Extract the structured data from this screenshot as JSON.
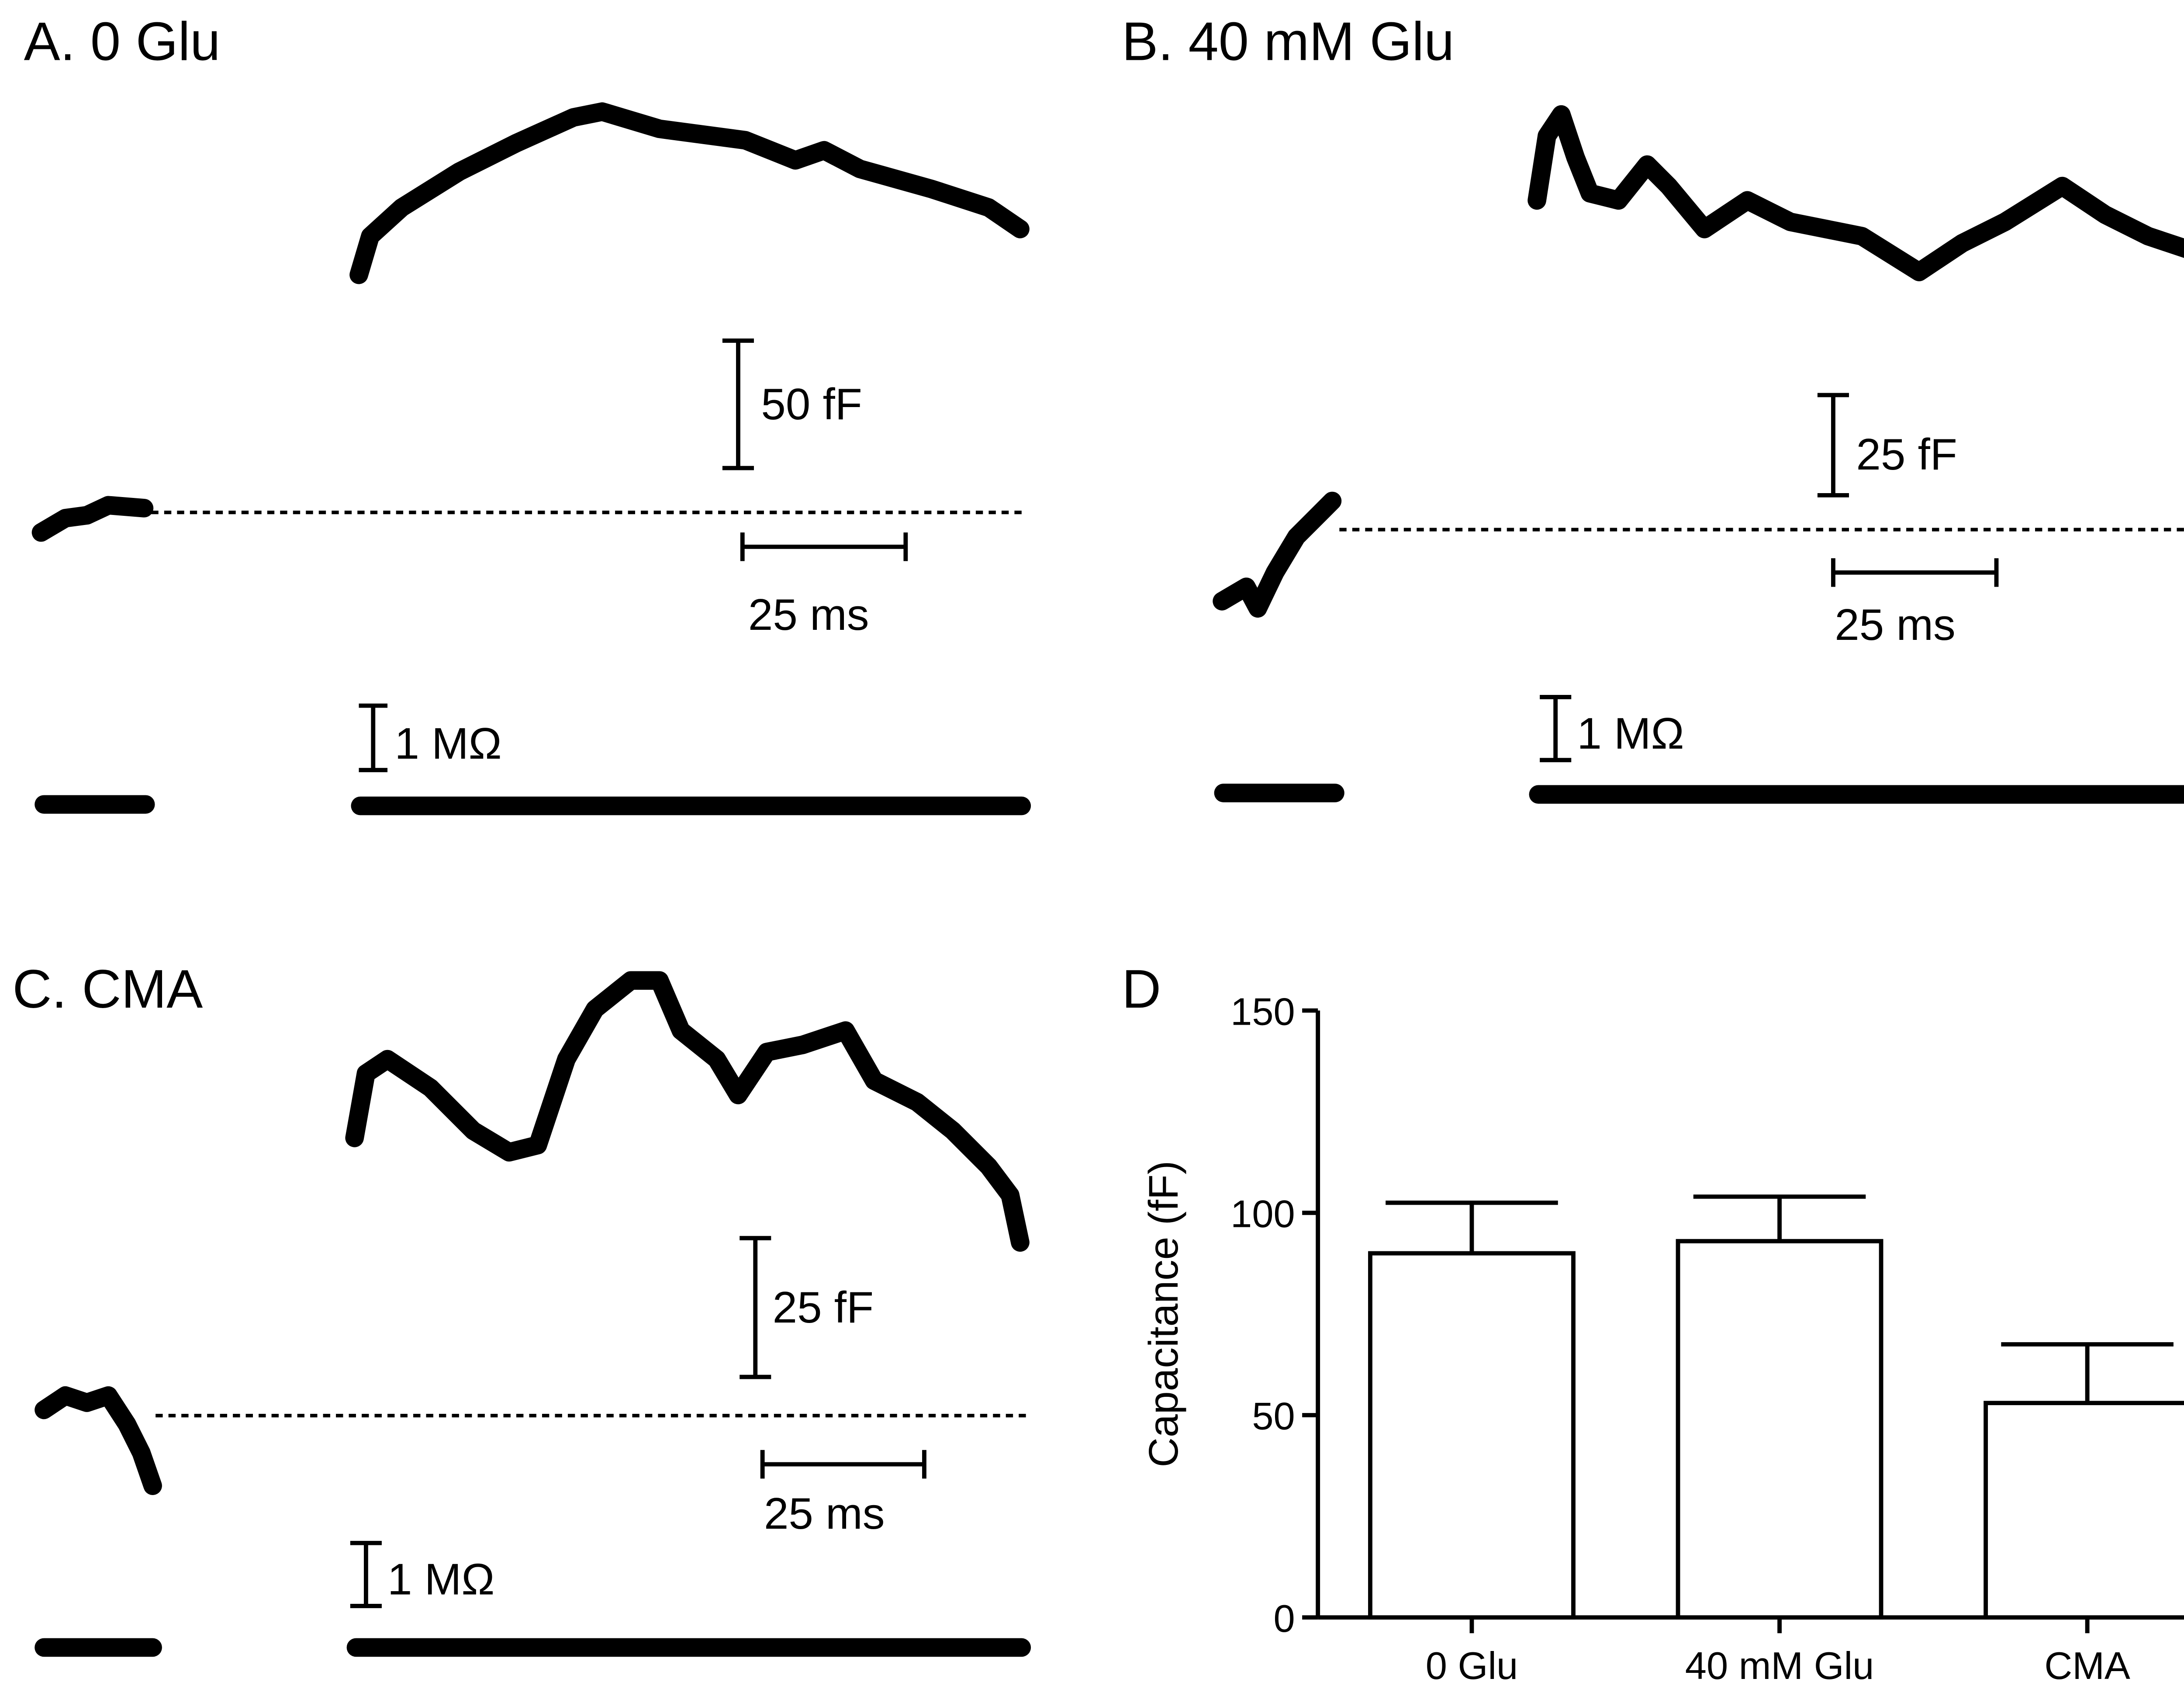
{
  "panels": [
    {
      "title": "A. 0 Glu",
      "cap_scale": "50 fF",
      "time_scale": "25 ms",
      "res_scale": "1 MΩ"
    },
    {
      "title": "B.  40 mM Glu",
      "cap_scale": "25 fF",
      "time_scale": "25 ms",
      "res_scale": "1 MΩ"
    },
    {
      "title": "C. CMA",
      "cap_scale": "25 fF",
      "time_scale": "25 ms",
      "res_scale": "1 MΩ"
    }
  ],
  "chart_data": {
    "type": "bar",
    "panel_label": "D",
    "y_label": "Capacitance (fF)",
    "categories": [
      "0 Glu",
      "40 mM Glu",
      "CMA"
    ],
    "values": [
      90,
      93,
      53
    ],
    "errors": [
      12.5,
      11,
      14.5
    ],
    "color": "#ffffff",
    "edge_color": "#000000",
    "ylim": [
      0,
      150
    ],
    "yticks": [
      0,
      50,
      100,
      150
    ],
    "grid": false
  }
}
